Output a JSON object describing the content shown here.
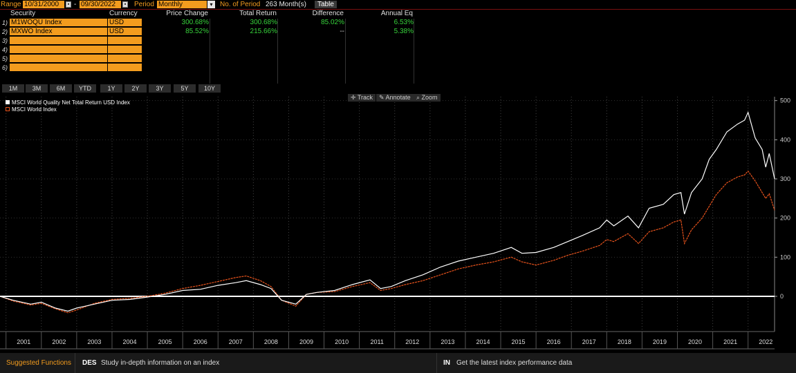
{
  "rangebar": {
    "range_label": "Range",
    "start_date": "10/31/2000",
    "dash": "-",
    "end_date": "09/30/2022",
    "period_label": "Period",
    "period_value": "Monthly",
    "num_periods_label": "No. of Period",
    "num_periods_value": "263 Month(s)",
    "table_button": "Table"
  },
  "table": {
    "headers": [
      "Security",
      "Currency",
      "Price Change",
      "Total Return",
      "Difference",
      "Annual Eq"
    ],
    "rows": [
      {
        "num": "1)",
        "security": "M1WOQU Index",
        "currency": "USD",
        "price_change": "300.68%",
        "total_return": "300.68%",
        "difference": "85.02%",
        "annual_eq": "6.53%"
      },
      {
        "num": "2)",
        "security": "MXWO Index",
        "currency": "USD",
        "price_change": "85.52%",
        "total_return": "215.66%",
        "difference": "--",
        "annual_eq": "5.38%"
      },
      {
        "num": "3)",
        "security": "",
        "currency": ""
      },
      {
        "num": "4)",
        "security": "",
        "currency": ""
      },
      {
        "num": "5)",
        "security": "",
        "currency": ""
      },
      {
        "num": "6)",
        "security": "",
        "currency": ""
      }
    ]
  },
  "period_buttons": [
    "1M",
    "3M",
    "6M",
    "YTD",
    "1Y",
    "2Y",
    "3Y",
    "5Y",
    "10Y"
  ],
  "chart_tools": {
    "track": "Track",
    "annotate": "Annotate",
    "zoom": "Zoom"
  },
  "colors": {
    "accent": "#f39c1e",
    "series1": "#ffffff",
    "series2": "#e8531c",
    "positive": "#37d33b",
    "background": "#000000"
  },
  "chart_data": {
    "type": "line",
    "x_unit": "year",
    "xlim": [
      2000.83,
      2022.75
    ],
    "ylim": [
      -90,
      510
    ],
    "yticks": [
      0,
      100,
      200,
      300,
      400,
      500
    ],
    "xtick_labels": [
      "2001",
      "2002",
      "2003",
      "2004",
      "2005",
      "2006",
      "2007",
      "2008",
      "2009",
      "2010",
      "2011",
      "2012",
      "2013",
      "2014",
      "2015",
      "2016",
      "2017",
      "2018",
      "2019",
      "2020",
      "2021",
      "2022"
    ],
    "zero_line": 0,
    "grid": true,
    "legend_position": "top-left",
    "series": [
      {
        "name": "MSCI World Quality Net Total Return USD Index",
        "color": "#ffffff",
        "style": "solid",
        "x": [
          2000.83,
          2001.2,
          2001.7,
          2002.0,
          2002.4,
          2002.75,
          2003.0,
          2003.5,
          2004.0,
          2004.5,
          2005.0,
          2005.5,
          2006.0,
          2006.5,
          2007.0,
          2007.5,
          2007.8,
          2008.2,
          2008.5,
          2008.8,
          2009.2,
          2009.5,
          2009.8,
          2010.3,
          2010.8,
          2011.3,
          2011.6,
          2011.9,
          2012.3,
          2012.8,
          2013.3,
          2013.8,
          2014.3,
          2014.8,
          2015.3,
          2015.6,
          2016.0,
          2016.5,
          2016.9,
          2017.3,
          2017.8,
          2018.0,
          2018.2,
          2018.6,
          2018.9,
          2019.2,
          2019.6,
          2019.9,
          2020.1,
          2020.2,
          2020.4,
          2020.7,
          2020.9,
          2021.1,
          2021.4,
          2021.7,
          2021.9,
          2022.0,
          2022.2,
          2022.4,
          2022.5,
          2022.6,
          2022.75
        ],
        "y": [
          0,
          -10,
          -20,
          -15,
          -30,
          -38,
          -30,
          -20,
          -10,
          -8,
          -2,
          5,
          15,
          18,
          28,
          35,
          40,
          30,
          20,
          -10,
          -20,
          5,
          10,
          15,
          30,
          42,
          20,
          25,
          40,
          55,
          75,
          90,
          100,
          110,
          125,
          110,
          112,
          125,
          140,
          155,
          175,
          195,
          180,
          205,
          175,
          225,
          235,
          260,
          265,
          210,
          265,
          300,
          350,
          375,
          420,
          440,
          450,
          470,
          405,
          375,
          330,
          365,
          300
        ]
      },
      {
        "name": "MSCI World Index",
        "color": "#e8531c",
        "style": "dashed",
        "x": [
          2000.83,
          2001.2,
          2001.7,
          2002.0,
          2002.4,
          2002.75,
          2003.0,
          2003.5,
          2004.0,
          2004.5,
          2005.0,
          2005.5,
          2006.0,
          2006.5,
          2007.0,
          2007.5,
          2007.8,
          2008.2,
          2008.5,
          2008.8,
          2009.2,
          2009.5,
          2009.8,
          2010.3,
          2010.8,
          2011.3,
          2011.6,
          2011.9,
          2012.3,
          2012.8,
          2013.3,
          2013.8,
          2014.3,
          2014.8,
          2015.3,
          2015.6,
          2016.0,
          2016.5,
          2016.9,
          2017.3,
          2017.8,
          2018.0,
          2018.2,
          2018.6,
          2018.9,
          2019.2,
          2019.6,
          2019.9,
          2020.1,
          2020.2,
          2020.4,
          2020.7,
          2020.9,
          2021.1,
          2021.4,
          2021.7,
          2021.9,
          2022.0,
          2022.2,
          2022.4,
          2022.5,
          2022.6,
          2022.75
        ],
        "y": [
          0,
          -12,
          -22,
          -18,
          -32,
          -42,
          -35,
          -18,
          -8,
          -5,
          0,
          8,
          20,
          28,
          38,
          48,
          52,
          40,
          25,
          -10,
          -25,
          5,
          10,
          12,
          25,
          35,
          15,
          20,
          30,
          40,
          55,
          70,
          80,
          88,
          100,
          88,
          80,
          92,
          105,
          115,
          130,
          145,
          140,
          160,
          135,
          165,
          175,
          190,
          195,
          135,
          170,
          200,
          230,
          260,
          290,
          305,
          310,
          320,
          295,
          265,
          250,
          262,
          220
        ]
      }
    ]
  },
  "bottombar": {
    "suggested": "Suggested Functions",
    "fn1_code": "DES",
    "fn1_desc": "Study in-depth information on an index",
    "fn2_code": "IN",
    "fn2_desc": "Get the latest index performance data"
  }
}
